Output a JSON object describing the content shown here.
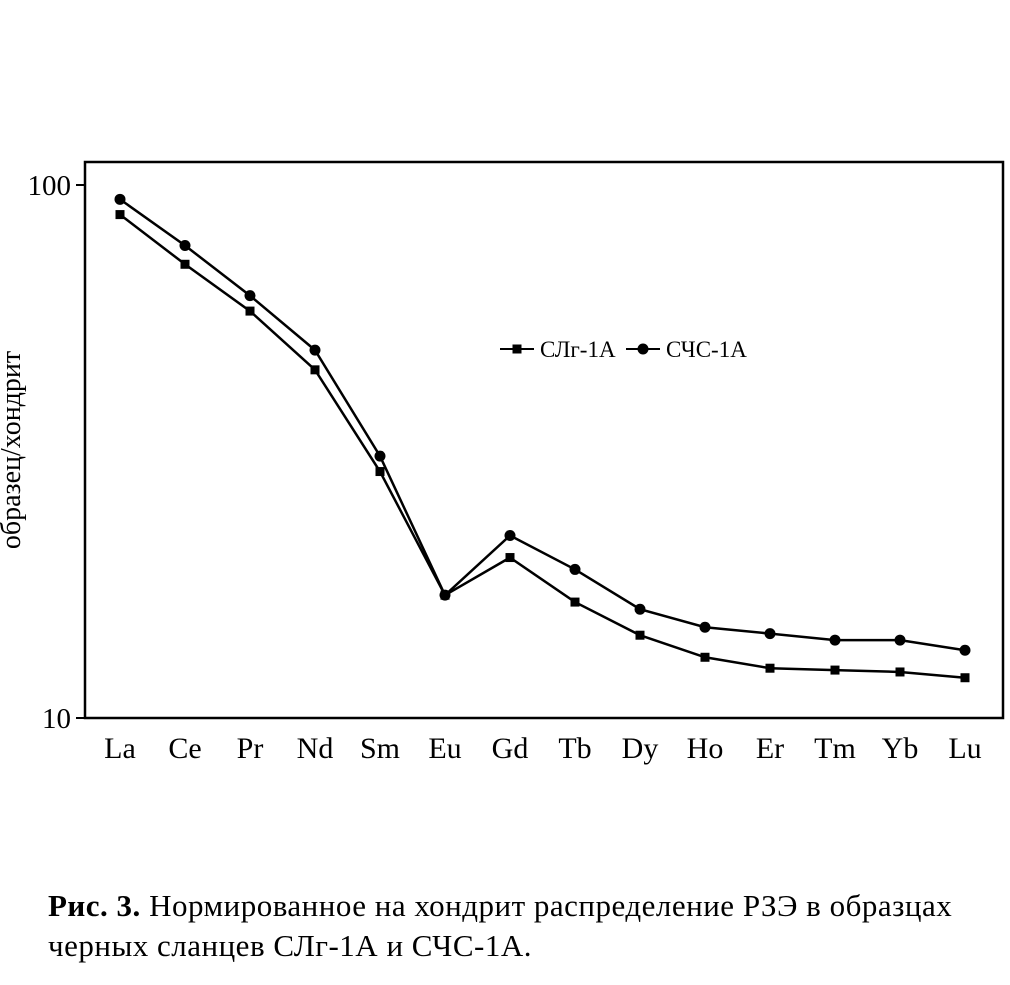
{
  "figure": {
    "y_axis_label": "образец/хондрит",
    "caption": {
      "label": "Рис. 3.",
      "text": "Нормированное на хондрит распределение РЗЭ в образцах черных сланцев СЛг-1А и СЧС-1А."
    }
  },
  "chart_data": {
    "type": "line",
    "title": "",
    "xlabel": "",
    "ylabel": "образец/хондрит",
    "x_categories": [
      "La",
      "Ce",
      "Pr",
      "Nd",
      "Sm",
      "Eu",
      "Gd",
      "Tb",
      "Dy",
      "Ho",
      "Er",
      "Tm",
      "Yb",
      "Lu"
    ],
    "y_scale": "log",
    "ylim": [
      10,
      100
    ],
    "y_ticks": [
      100,
      10
    ],
    "grid": false,
    "legend_position": "inside-upper-middle",
    "line_color": "#000000",
    "series": [
      {
        "name": "СЛг-1А",
        "marker": "square",
        "color": "#000000",
        "values": [
          88,
          71,
          58,
          45,
          29,
          17,
          20,
          16.5,
          14.3,
          13.0,
          12.4,
          12.3,
          12.2,
          11.9
        ]
      },
      {
        "name": "СЧС-1А",
        "marker": "circle",
        "color": "#000000",
        "values": [
          94,
          77,
          62,
          49,
          31,
          17,
          22,
          19,
          16,
          14.8,
          14.4,
          14.0,
          14.0,
          13.4
        ]
      }
    ]
  }
}
